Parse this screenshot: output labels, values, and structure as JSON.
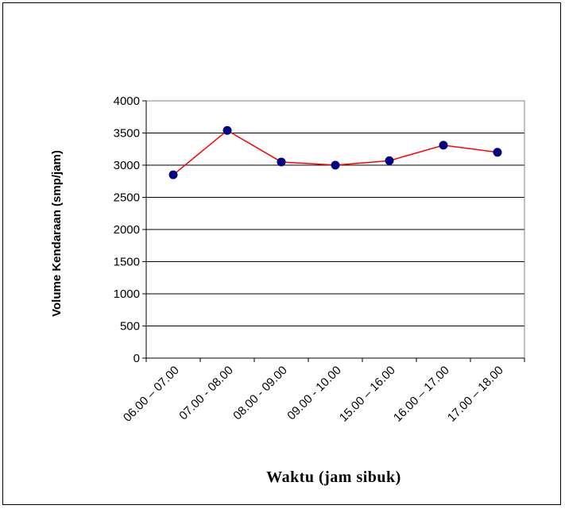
{
  "chart_data": {
    "type": "line",
    "categories": [
      "06.00 – 07.00",
      "07.00 - 08.00",
      "08.00 - 09.00",
      "09.00 - 10.00",
      "15.00 – 16.00",
      "16.00 – 17.00",
      "17.00 – 18.00"
    ],
    "series": [
      {
        "values": [
          2850,
          3540,
          3050,
          3000,
          3070,
          3310,
          3200
        ]
      }
    ],
    "xlabel": "Waktu (jam sibuk)",
    "ylabel": "Volume Kendaraan (smp/jam)",
    "ylim": [
      0,
      4000
    ],
    "yticks": [
      0,
      500,
      1000,
      1500,
      2000,
      2500,
      3000,
      3500,
      4000
    ],
    "grid": true,
    "line_color": "#ff0000",
    "marker_color": "#000080",
    "grid_color": "#000000",
    "plot_border_color": "#808080"
  }
}
